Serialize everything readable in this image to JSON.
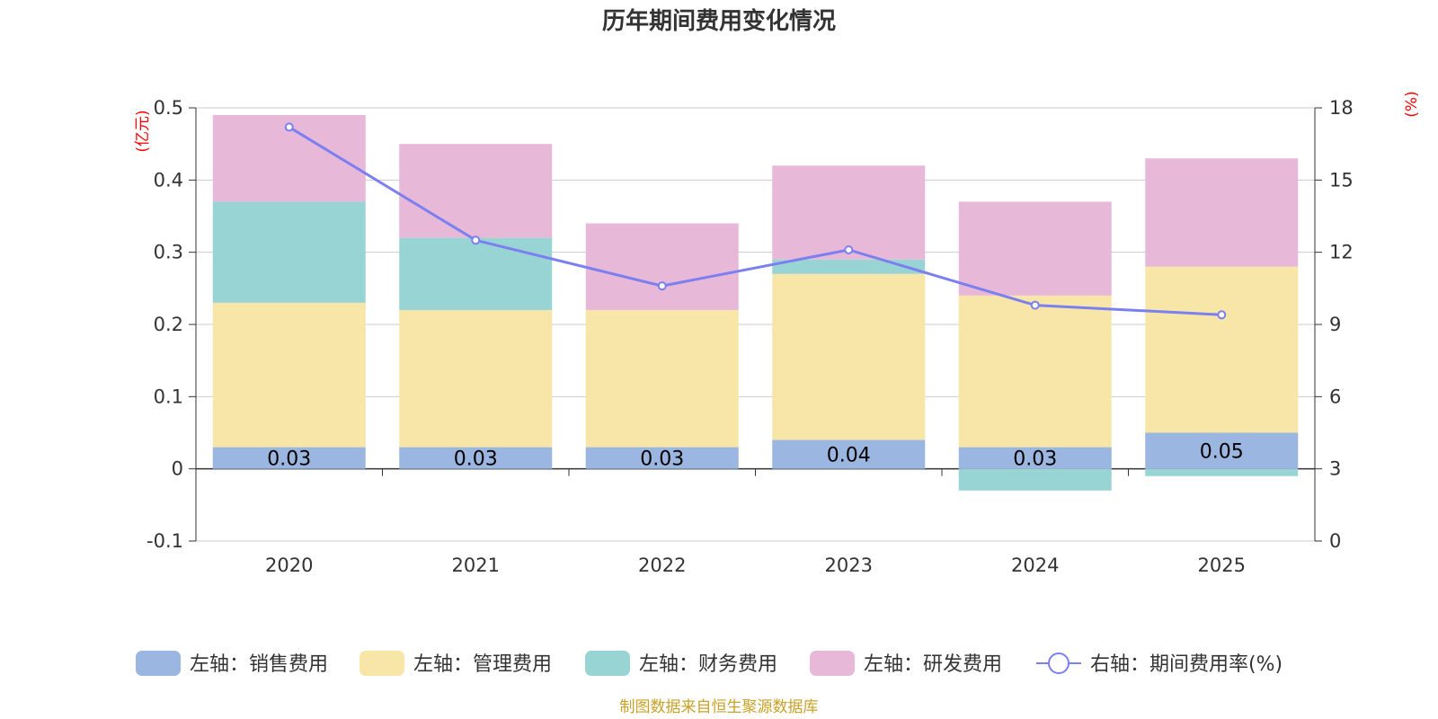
{
  "chart_data": {
    "type": "bar",
    "stacked": true,
    "title": "历年期间费用变化情况",
    "categories": [
      "2020",
      "2021",
      "2022",
      "2023",
      "2024",
      "2025"
    ],
    "left_axis": {
      "unit": "(亿元)",
      "min": -0.1,
      "max": 0.5,
      "ticks": [
        "-0.1",
        "0",
        "0.1",
        "0.2",
        "0.3",
        "0.4",
        "0.5"
      ]
    },
    "right_axis": {
      "unit": "(%)",
      "min": 0,
      "max": 18,
      "ticks": [
        "0",
        "3",
        "6",
        "9",
        "12",
        "15",
        "18"
      ]
    },
    "series": [
      {
        "name": "左轴：销售费用",
        "axis": "left",
        "color": "#9bb6e0",
        "values": [
          0.03,
          0.03,
          0.03,
          0.04,
          0.03,
          0.05
        ],
        "labels": [
          "0.03",
          "0.03",
          "0.03",
          "0.04",
          "0.03",
          "0.05"
        ]
      },
      {
        "name": "左轴：管理费用",
        "axis": "left",
        "color": "#f7e6a8",
        "values": [
          0.2,
          0.19,
          0.19,
          0.23,
          0.21,
          0.23
        ]
      },
      {
        "name": "左轴：财务费用",
        "axis": "left",
        "color": "#98d4d4",
        "values": [
          0.14,
          0.1,
          0.0,
          0.02,
          -0.03,
          -0.01
        ]
      },
      {
        "name": "左轴：研发费用",
        "axis": "left",
        "color": "#e8b8d9",
        "values": [
          0.12,
          0.13,
          0.12,
          0.13,
          0.13,
          0.15
        ]
      },
      {
        "name": "右轴：期间费用率(%)",
        "axis": "right",
        "type": "line",
        "color": "#7b7ff0",
        "values": [
          17.2,
          12.5,
          10.6,
          12.1,
          9.8,
          9.4
        ]
      }
    ],
    "grid": true,
    "legend_position": "bottom"
  },
  "source_note": "制图数据来自恒生聚源数据库"
}
